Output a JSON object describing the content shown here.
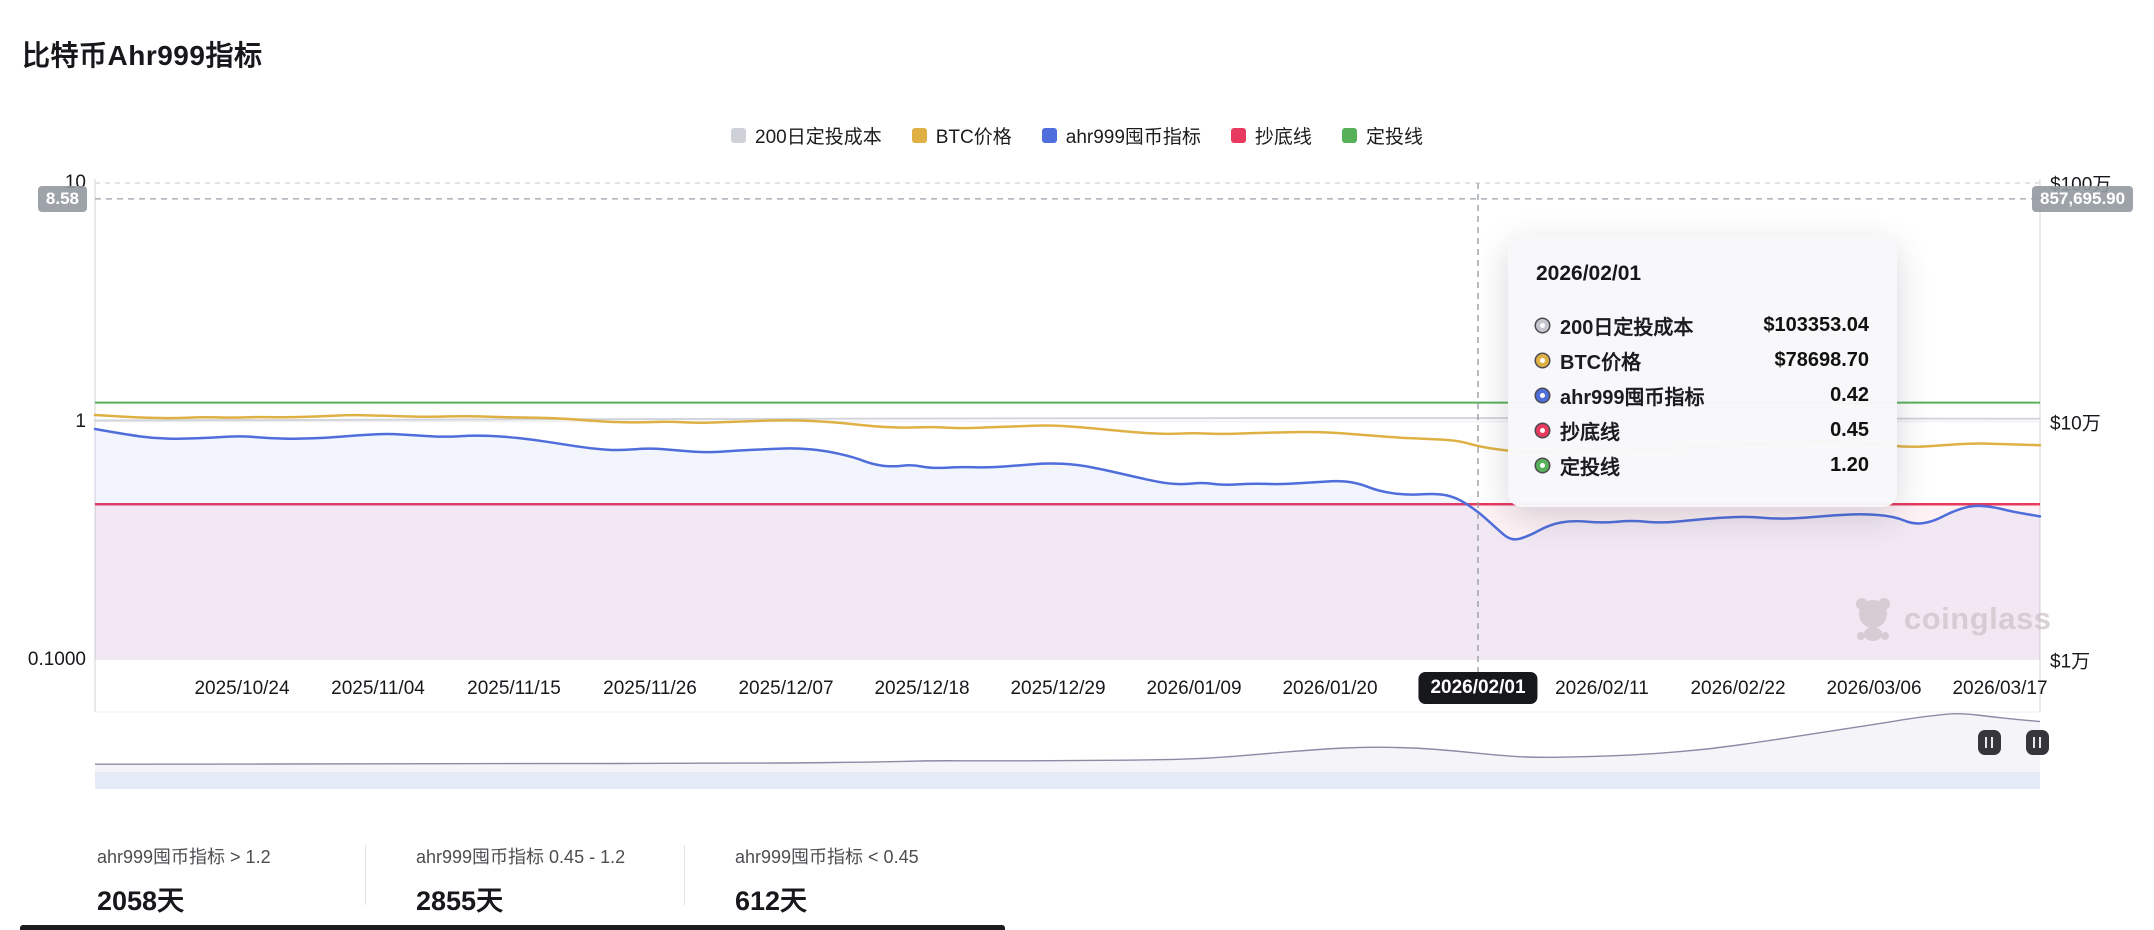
{
  "page": {
    "title": "比特币Ahr999指标"
  },
  "legend": {
    "items": [
      {
        "label": "200日定投成本",
        "color": "#ced1d7"
      },
      {
        "label": "BTC价格",
        "color": "#dfb145"
      },
      {
        "label": "ahr999囤币指标",
        "color": "#4f6edb"
      },
      {
        "label": "抄底线",
        "color": "#e8395f"
      },
      {
        "label": "定投线",
        "color": "#56b159"
      }
    ]
  },
  "tooltip": {
    "date": "2026/02/01",
    "rows": [
      {
        "label": "200日定投成本",
        "value": "$103353.04",
        "color": "#c3c6cc"
      },
      {
        "label": "BTC价格",
        "value": "$78698.70",
        "color": "#dfb145"
      },
      {
        "label": "ahr999囤币指标",
        "value": "0.42",
        "color": "#4f6edb"
      },
      {
        "label": "抄底线",
        "value": "0.45",
        "color": "#e8395f"
      },
      {
        "label": "定投线",
        "value": "1.20",
        "color": "#56b159"
      }
    ]
  },
  "crosshair": {
    "t": 0.71105,
    "y_value": 8.58,
    "left_badge": "8.58",
    "right_badge": "857,695.90",
    "date_badge": "2026/02/01"
  },
  "stats": [
    {
      "label": "ahr999囤币指标 > 1.2",
      "value": "2058天"
    },
    {
      "label": "ahr999囤币指标 0.45 - 1.2",
      "value": "2855天"
    },
    {
      "label": "ahr999囤币指标 < 0.45",
      "value": "612天"
    }
  ],
  "watermark": {
    "text": "coinglass"
  },
  "chart_data": {
    "type": "line",
    "title": "比特币Ahr999指标",
    "grid": true,
    "legend_position": "top-center",
    "y_axis_left": {
      "scale": "log",
      "range": [
        0.1,
        10
      ],
      "ticks": [
        {
          "v": 10,
          "label": "10"
        },
        {
          "v": 1,
          "label": "1"
        },
        {
          "v": 0.1,
          "label": "0.1000"
        }
      ]
    },
    "y_axis_right": {
      "scale": "log",
      "range": [
        10000,
        1000000
      ],
      "ticks": [
        {
          "v": 1000000,
          "label": "$100万"
        },
        {
          "v": 100000,
          "label": "$10万"
        },
        {
          "v": 10000,
          "label": "$1万"
        }
      ]
    },
    "x_ticks": [
      {
        "label": "2025/10/24",
        "pos": 0.07558
      },
      {
        "label": "2025/11/04",
        "pos": 0.1455
      },
      {
        "label": "2025/11/15",
        "pos": 0.21542
      },
      {
        "label": "2025/11/26",
        "pos": 0.28535
      },
      {
        "label": "2025/12/07",
        "pos": 0.35527
      },
      {
        "label": "2025/12/18",
        "pos": 0.42519
      },
      {
        "label": "2025/12/29",
        "pos": 0.49512
      },
      {
        "label": "2026/01/09",
        "pos": 0.56504
      },
      {
        "label": "2026/01/20",
        "pos": 0.63496
      },
      {
        "label": "2026/02/01",
        "pos": 0.71105,
        "highlight": true
      },
      {
        "label": "2026/02/11",
        "pos": 0.77478
      },
      {
        "label": "2026/02/22",
        "pos": 0.84473
      },
      {
        "label": "2026/03/06",
        "pos": 0.91465
      },
      {
        "label": "2026/03/17",
        "pos": 0.97943
      }
    ],
    "series": [
      {
        "name": "定投线",
        "axis": "left",
        "color": "#56b159",
        "width": 2,
        "const": 1.2
      },
      {
        "name": "抄底线",
        "axis": "left",
        "color": "#e8395f",
        "width": 2.5,
        "const": 0.45,
        "fill_below": "rgba(236,64,112,0.07)"
      },
      {
        "name": "200日定投成本",
        "axis": "right",
        "color": "#d2d5db",
        "width": 2,
        "points": [
          [
            0,
            101000
          ],
          [
            0.15,
            101800
          ],
          [
            0.3,
            102500
          ],
          [
            0.45,
            103000
          ],
          [
            0.6,
            103300
          ],
          [
            0.711,
            103353
          ],
          [
            0.85,
            103100
          ],
          [
            1,
            102600
          ]
        ]
      },
      {
        "name": "BTC价格",
        "axis": "right",
        "color": "#dfb145",
        "width": 2.5,
        "points": [
          [
            0,
            106500
          ],
          [
            0.02,
            104000
          ],
          [
            0.04,
            103000
          ],
          [
            0.055,
            104500
          ],
          [
            0.07,
            103500
          ],
          [
            0.085,
            104500
          ],
          [
            0.1,
            104000
          ],
          [
            0.115,
            105000
          ],
          [
            0.13,
            106500
          ],
          [
            0.145,
            106000
          ],
          [
            0.16,
            105000
          ],
          [
            0.175,
            104500
          ],
          [
            0.19,
            105500
          ],
          [
            0.205,
            104500
          ],
          [
            0.22,
            104000
          ],
          [
            0.235,
            103500
          ],
          [
            0.25,
            101500
          ],
          [
            0.265,
            99500
          ],
          [
            0.28,
            99000
          ],
          [
            0.295,
            100000
          ],
          [
            0.31,
            98500
          ],
          [
            0.325,
            99500
          ],
          [
            0.34,
            100500
          ],
          [
            0.355,
            101500
          ],
          [
            0.37,
            100500
          ],
          [
            0.385,
            98500
          ],
          [
            0.4,
            95500
          ],
          [
            0.415,
            94000
          ],
          [
            0.43,
            95000
          ],
          [
            0.445,
            93500
          ],
          [
            0.46,
            94500
          ],
          [
            0.475,
            95500
          ],
          [
            0.49,
            96500
          ],
          [
            0.505,
            95000
          ],
          [
            0.52,
            92500
          ],
          [
            0.535,
            90000
          ],
          [
            0.55,
            88500
          ],
          [
            0.565,
            89500
          ],
          [
            0.58,
            88500
          ],
          [
            0.595,
            89500
          ],
          [
            0.61,
            90000
          ],
          [
            0.625,
            90500
          ],
          [
            0.64,
            89500
          ],
          [
            0.655,
            87500
          ],
          [
            0.67,
            85500
          ],
          [
            0.685,
            84500
          ],
          [
            0.7,
            83500
          ],
          [
            0.711,
            78699
          ],
          [
            0.725,
            75500
          ],
          [
            0.74,
            74000
          ],
          [
            0.755,
            75500
          ],
          [
            0.77,
            76500
          ],
          [
            0.785,
            75500
          ],
          [
            0.8,
            76500
          ],
          [
            0.815,
            77500
          ],
          [
            0.83,
            78500
          ],
          [
            0.845,
            80000
          ],
          [
            0.86,
            81000
          ],
          [
            0.875,
            82000
          ],
          [
            0.89,
            82500
          ],
          [
            0.905,
            81500
          ],
          [
            0.92,
            79500
          ],
          [
            0.935,
            78000
          ],
          [
            0.95,
            79500
          ],
          [
            0.965,
            81000
          ],
          [
            0.98,
            80500
          ],
          [
            1,
            79500
          ]
        ]
      },
      {
        "name": "ahr999囤币指标",
        "axis": "left",
        "color": "#4f6edb",
        "width": 2.5,
        "fill_below": "rgba(90,120,220,0.07)",
        "points": [
          [
            0,
            0.93
          ],
          [
            0.015,
            0.885
          ],
          [
            0.03,
            0.85
          ],
          [
            0.045,
            0.845
          ],
          [
            0.06,
            0.855
          ],
          [
            0.075,
            0.87
          ],
          [
            0.09,
            0.85
          ],
          [
            0.105,
            0.845
          ],
          [
            0.12,
            0.855
          ],
          [
            0.135,
            0.875
          ],
          [
            0.15,
            0.89
          ],
          [
            0.165,
            0.875
          ],
          [
            0.18,
            0.86
          ],
          [
            0.195,
            0.875
          ],
          [
            0.21,
            0.865
          ],
          [
            0.225,
            0.84
          ],
          [
            0.24,
            0.805
          ],
          [
            0.255,
            0.77
          ],
          [
            0.27,
            0.755
          ],
          [
            0.285,
            0.775
          ],
          [
            0.3,
            0.755
          ],
          [
            0.315,
            0.74
          ],
          [
            0.33,
            0.755
          ],
          [
            0.345,
            0.765
          ],
          [
            0.36,
            0.775
          ],
          [
            0.375,
            0.755
          ],
          [
            0.39,
            0.71
          ],
          [
            0.4,
            0.66
          ],
          [
            0.41,
            0.645
          ],
          [
            0.42,
            0.66
          ],
          [
            0.43,
            0.635
          ],
          [
            0.445,
            0.645
          ],
          [
            0.46,
            0.64
          ],
          [
            0.475,
            0.655
          ],
          [
            0.49,
            0.67
          ],
          [
            0.505,
            0.66
          ],
          [
            0.52,
            0.625
          ],
          [
            0.535,
            0.585
          ],
          [
            0.55,
            0.55
          ],
          [
            0.56,
            0.545
          ],
          [
            0.57,
            0.555
          ],
          [
            0.58,
            0.54
          ],
          [
            0.595,
            0.55
          ],
          [
            0.61,
            0.545
          ],
          [
            0.625,
            0.555
          ],
          [
            0.64,
            0.565
          ],
          [
            0.65,
            0.55
          ],
          [
            0.66,
            0.51
          ],
          [
            0.675,
            0.49
          ],
          [
            0.69,
            0.5
          ],
          [
            0.7,
            0.48
          ],
          [
            0.711,
            0.42
          ],
          [
            0.72,
            0.36
          ],
          [
            0.728,
            0.315
          ],
          [
            0.737,
            0.33
          ],
          [
            0.748,
            0.37
          ],
          [
            0.76,
            0.385
          ],
          [
            0.775,
            0.375
          ],
          [
            0.79,
            0.385
          ],
          [
            0.805,
            0.375
          ],
          [
            0.82,
            0.385
          ],
          [
            0.835,
            0.395
          ],
          [
            0.85,
            0.4
          ],
          [
            0.865,
            0.39
          ],
          [
            0.88,
            0.395
          ],
          [
            0.895,
            0.405
          ],
          [
            0.91,
            0.41
          ],
          [
            0.925,
            0.4
          ],
          [
            0.935,
            0.37
          ],
          [
            0.945,
            0.38
          ],
          [
            0.955,
            0.42
          ],
          [
            0.965,
            0.445
          ],
          [
            0.975,
            0.44
          ],
          [
            0.985,
            0.42
          ],
          [
            1,
            0.4
          ]
        ]
      }
    ],
    "tooltip_point": {
      "date": "2026/02/01",
      "200日定投成本": 103353.04,
      "BTC价格": 78698.7,
      "ahr999囤币指标": 0.42,
      "抄底线": 0.45,
      "定投线": 1.2
    },
    "navigator": {
      "color": "#8d8aa6",
      "points": [
        [
          0,
          0.13
        ],
        [
          0.06,
          0.13
        ],
        [
          0.12,
          0.135
        ],
        [
          0.18,
          0.14
        ],
        [
          0.24,
          0.14
        ],
        [
          0.3,
          0.145
        ],
        [
          0.36,
          0.15
        ],
        [
          0.4,
          0.165
        ],
        [
          0.43,
          0.19
        ],
        [
          0.46,
          0.185
        ],
        [
          0.5,
          0.19
        ],
        [
          0.54,
          0.2
        ],
        [
          0.57,
          0.22
        ],
        [
          0.6,
          0.3
        ],
        [
          0.63,
          0.38
        ],
        [
          0.655,
          0.42
        ],
        [
          0.68,
          0.4
        ],
        [
          0.7,
          0.35
        ],
        [
          0.72,
          0.28
        ],
        [
          0.74,
          0.24
        ],
        [
          0.76,
          0.25
        ],
        [
          0.78,
          0.27
        ],
        [
          0.8,
          0.3
        ],
        [
          0.83,
          0.38
        ],
        [
          0.86,
          0.52
        ],
        [
          0.88,
          0.62
        ],
        [
          0.9,
          0.72
        ],
        [
          0.92,
          0.82
        ],
        [
          0.935,
          0.9
        ],
        [
          0.95,
          0.96
        ],
        [
          0.96,
          0.98
        ],
        [
          0.975,
          0.92
        ],
        [
          0.99,
          0.87
        ],
        [
          1,
          0.84
        ]
      ],
      "handles": [
        0.974,
        0.9985
      ]
    }
  }
}
